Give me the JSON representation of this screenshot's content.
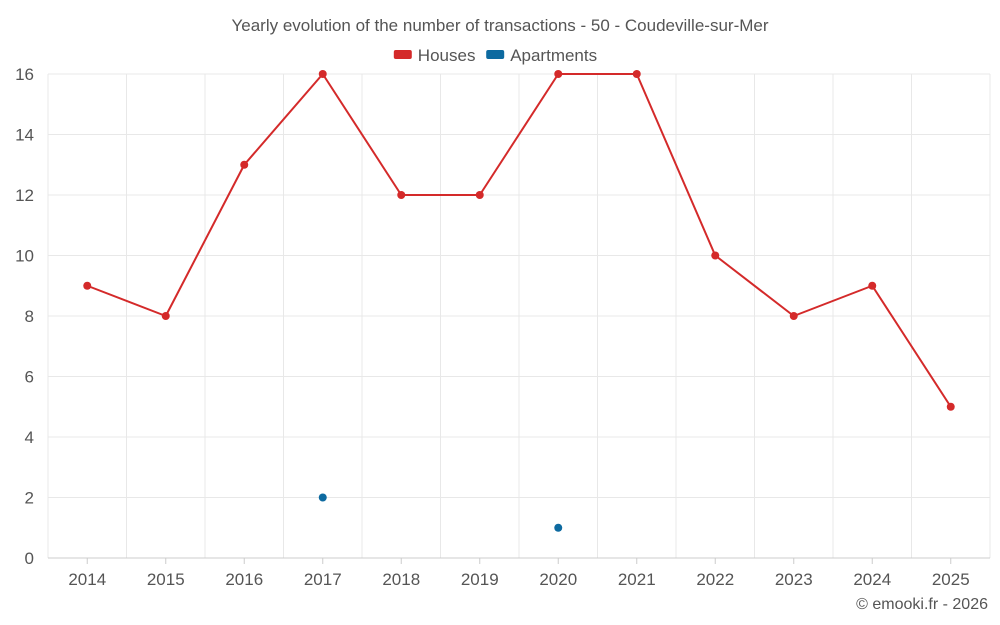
{
  "chart_data": {
    "type": "line",
    "title": "Yearly evolution of the number of transactions - 50 - Coudeville-sur-Mer",
    "categories": [
      "2014",
      "2015",
      "2016",
      "2017",
      "2018",
      "2019",
      "2020",
      "2021",
      "2022",
      "2023",
      "2024",
      "2025"
    ],
    "series": [
      {
        "name": "Houses",
        "color": "#d42a2a",
        "values": [
          9,
          8,
          13,
          16,
          12,
          12,
          16,
          16,
          10,
          8,
          9,
          5
        ]
      },
      {
        "name": "Apartments",
        "color": "#0d6aa0",
        "values": [
          null,
          null,
          null,
          2,
          null,
          null,
          1,
          null,
          null,
          null,
          null,
          null
        ]
      }
    ],
    "ylim": [
      0,
      16
    ],
    "yticks": [
      0,
      2,
      4,
      6,
      8,
      10,
      12,
      14,
      16
    ],
    "xlabel": "",
    "ylabel": "",
    "grid": true,
    "legend_position": "top-center"
  },
  "credit": "© emooki.fr - 2026"
}
